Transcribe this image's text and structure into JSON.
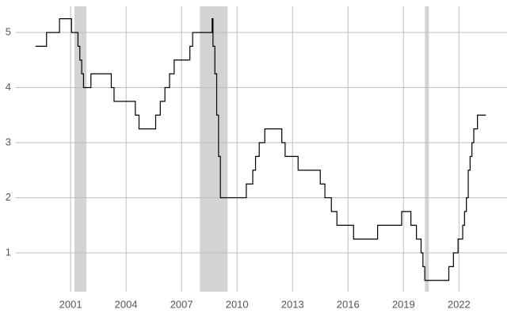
{
  "chart_data": {
    "type": "line",
    "step": "post",
    "color": "#000000",
    "grid": true,
    "shade_color": "#d3d3d3",
    "x": [
      1999.1,
      1999.7,
      2000.4,
      2001.05,
      2001.4,
      2001.5,
      2001.6,
      2001.7,
      2002.1,
      2003.2,
      2003.35,
      2004.5,
      2004.7,
      2005.6,
      2005.85,
      2006.1,
      2006.35,
      2006.6,
      2007.45,
      2007.6,
      2008.65,
      2008.7,
      2008.8,
      2008.9,
      2009.0,
      2009.1,
      2010.5,
      2010.85,
      2011.0,
      2011.2,
      2011.5,
      2012.42,
      2012.6,
      2013.3,
      2014.5,
      2014.75,
      2015.1,
      2015.4,
      2016.3,
      2017.6,
      2018.9,
      2019.4,
      2019.7,
      2019.95,
      2020.05,
      2020.15,
      2021.45,
      2021.7,
      2021.95,
      2022.2,
      2022.3,
      2022.4,
      2022.5,
      2022.6,
      2022.7,
      2022.8,
      2023.0,
      2023.45
    ],
    "values": [
      4.75,
      5.0,
      5.25,
      5.0,
      4.75,
      4.5,
      4.25,
      4.0,
      4.25,
      4.0,
      3.75,
      3.5,
      3.25,
      3.5,
      3.75,
      4.0,
      4.25,
      4.5,
      4.75,
      5.0,
      5.25,
      4.75,
      4.25,
      3.5,
      2.75,
      2.0,
      2.25,
      2.5,
      2.75,
      3.0,
      3.25,
      3.0,
      2.75,
      2.5,
      2.25,
      2.0,
      1.75,
      1.5,
      1.25,
      1.5,
      1.75,
      1.5,
      1.25,
      1.0,
      0.75,
      0.5,
      0.75,
      1.0,
      1.25,
      1.5,
      1.75,
      2.0,
      2.5,
      2.75,
      3.0,
      3.25,
      3.5,
      3.5
    ],
    "shaded_regions": [
      [
        2001.21,
        2001.86
      ],
      [
        2007.99,
        2009.49
      ],
      [
        2020.16,
        2020.37
      ]
    ],
    "xlim": [
      1998.04,
      2024.6
    ],
    "xticks": [
      2001,
      2004,
      2007,
      2010,
      2013,
      2016,
      2019,
      2022
    ],
    "ylim": [
      0.295,
      5.475
    ],
    "yticks": [
      1,
      2,
      3,
      4,
      5
    ]
  }
}
